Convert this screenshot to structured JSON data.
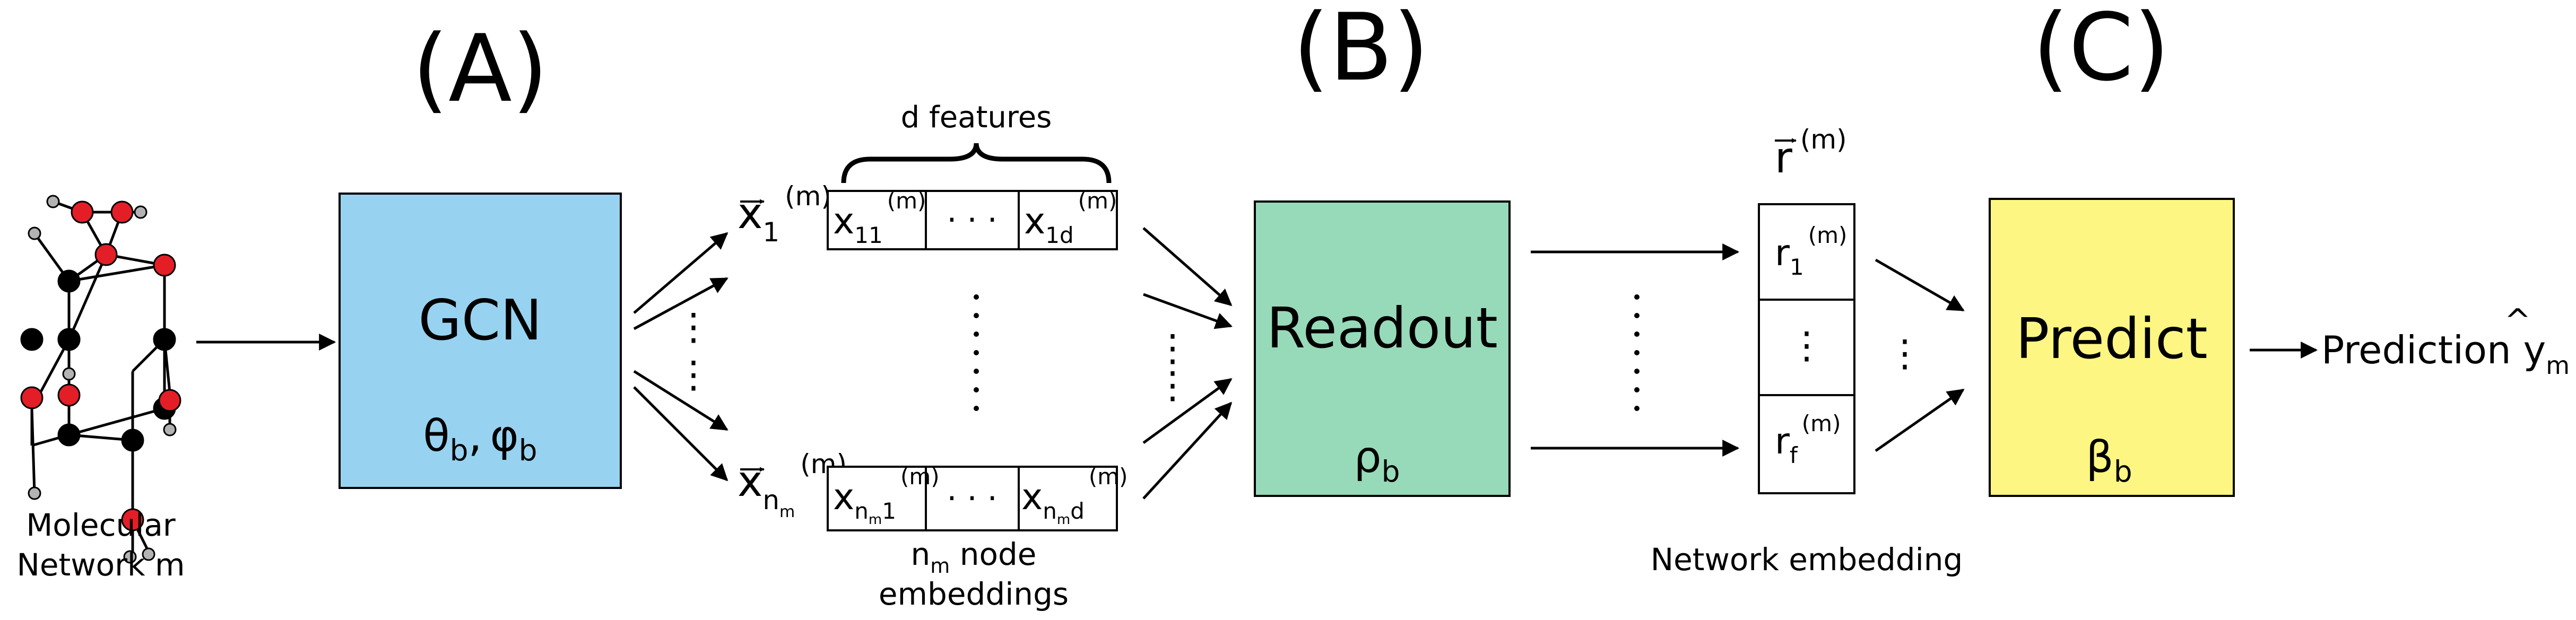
{
  "panels": {
    "a_label": "(A)",
    "b_label": "(B)",
    "c_label": "(C)"
  },
  "molecule": {
    "caption_line1": "Molecular",
    "caption_line2": "Network m"
  },
  "gcn": {
    "title": "GCN",
    "params": "θ_b, φ_b",
    "param1": "θ",
    "param1_sub": "b",
    "param_sep": ",",
    "param2": "φ",
    "param2_sub": "b",
    "color": "#97d3f1"
  },
  "node_embeddings": {
    "brace_label": "d features",
    "vec_top": "x",
    "vec_top_sub": "1",
    "vec_top_sup": "(m)",
    "vec_bottom": "x",
    "vec_bottom_sub": "n",
    "vec_bottom_subsub": "m",
    "vec_bottom_sup": "(m)",
    "row_top_cell1": "x",
    "row_top_cell1_sub": "11",
    "row_top_cell1_sup": "(m)",
    "row_top_cell3": "x",
    "row_top_cell3_sub": "1d",
    "row_top_cell3_sup": "(m)",
    "row_bottom_cell1": "x",
    "row_bottom_cell1_sub": "n",
    "row_bottom_cell1_subsub": "m",
    "row_bottom_cell1_sub2": "1",
    "row_bottom_cell1_sup": "(m)",
    "row_bottom_cell3": "x",
    "row_bottom_cell3_sub": "n",
    "row_bottom_cell3_subsub": "m",
    "row_bottom_cell3_sub2": "d",
    "row_bottom_cell3_sup": "(m)",
    "ellipsis": "· · ·",
    "caption_line1": "n",
    "caption_line1_sub": "m",
    "caption_line1_rest": " node",
    "caption_line2": "embeddings"
  },
  "readout": {
    "title": "Readout",
    "param": "ρ",
    "param_sub": "b",
    "color": "#97dab9"
  },
  "network_embedding": {
    "vec": "r",
    "vec_sup": "(m)",
    "cell_top": "r",
    "cell_top_sub": "1",
    "cell_top_sup": "(m)",
    "cell_bottom": "r",
    "cell_bottom_sub": "f",
    "cell_bottom_sup": "(m)",
    "caption": "Network embedding"
  },
  "predict": {
    "title": "Predict",
    "param": "β",
    "param_sub": "b",
    "color": "#fdf682"
  },
  "output": {
    "label": "Prediction ",
    "var": "y",
    "var_sub": "m"
  },
  "atom_colors": {
    "red": "#e41e26",
    "black": "#000000",
    "hydrogen": "#b3b3b3"
  }
}
